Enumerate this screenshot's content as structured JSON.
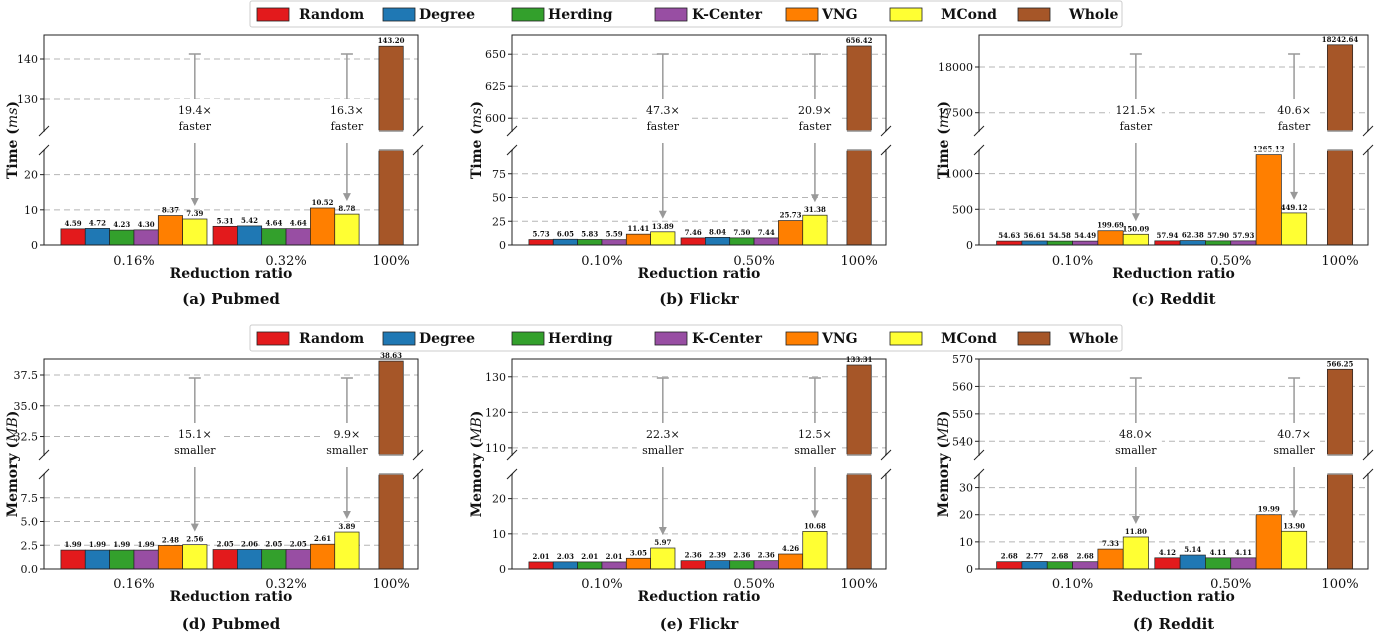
{
  "legend": [
    {
      "name": "Random",
      "color": "#e31a1c"
    },
    {
      "name": "Degree",
      "color": "#1f78b4"
    },
    {
      "name": "Herding",
      "color": "#33a02c"
    },
    {
      "name": "K-Center",
      "color": "#984ea3"
    },
    {
      "name": "VNG",
      "color": "#ff7f00"
    },
    {
      "name": "MCond",
      "color": "#ffff33"
    },
    {
      "name": "Whole",
      "color": "#a65628"
    }
  ],
  "chart_data": [
    {
      "type": "bar",
      "caption": "(a) Pubmed",
      "ylabel_main": "Time",
      "ylabel_unit": "ms",
      "xlabel": "Reduction ratio",
      "groups": [
        "0.16%",
        "0.32%"
      ],
      "whole_label": "100%",
      "series": [
        {
          "name": "Random",
          "values": [
            4.59,
            5.31
          ]
        },
        {
          "name": "Degree",
          "values": [
            4.72,
            5.42
          ]
        },
        {
          "name": "Herding",
          "values": [
            4.23,
            4.64
          ]
        },
        {
          "name": "K-Center",
          "values": [
            4.3,
            4.64
          ]
        },
        {
          "name": "VNG",
          "values": [
            8.37,
            10.52
          ]
        },
        {
          "name": "MCond",
          "values": [
            7.39,
            8.78
          ]
        }
      ],
      "whole": 143.2,
      "lower_ylim": [
        0,
        27
      ],
      "lower_ticks": [
        0,
        10,
        20
      ],
      "upper_ylim": [
        122,
        146
      ],
      "upper_ticks": [
        130,
        140
      ],
      "annotations": [
        {
          "group": 0,
          "text": [
            "19.4×",
            "faster"
          ]
        },
        {
          "group": 1,
          "text": [
            "16.3×",
            "faster"
          ]
        }
      ]
    },
    {
      "type": "bar",
      "caption": "(b) Flickr",
      "ylabel_main": "Time",
      "ylabel_unit": "ms",
      "xlabel": "Reduction ratio",
      "groups": [
        "0.10%",
        "0.50%"
      ],
      "whole_label": "100%",
      "series": [
        {
          "name": "Random",
          "values": [
            5.73,
            7.46
          ]
        },
        {
          "name": "Degree",
          "values": [
            6.05,
            8.04
          ]
        },
        {
          "name": "Herding",
          "values": [
            5.83,
            7.5
          ]
        },
        {
          "name": "K-Center",
          "values": [
            5.59,
            7.44
          ]
        },
        {
          "name": "VNG",
          "values": [
            11.41,
            25.73
          ]
        },
        {
          "name": "MCond",
          "values": [
            13.89,
            31.38
          ]
        }
      ],
      "whole": 656.42,
      "lower_ylim": [
        0,
        100
      ],
      "lower_ticks": [
        0,
        25,
        50,
        75
      ],
      "upper_ylim": [
        590,
        665
      ],
      "upper_ticks": [
        600,
        625,
        650
      ],
      "annotations": [
        {
          "group": 0,
          "text": [
            "47.3×",
            "faster"
          ]
        },
        {
          "group": 1,
          "text": [
            "20.9×",
            "faster"
          ]
        }
      ]
    },
    {
      "type": "bar",
      "caption": "(c) Reddit",
      "ylabel_main": "Time",
      "ylabel_unit": "ms",
      "xlabel": "Reduction ratio",
      "groups": [
        "0.10%",
        "0.50%"
      ],
      "whole_label": "100%",
      "series": [
        {
          "name": "Random",
          "values": [
            54.63,
            57.94
          ]
        },
        {
          "name": "Degree",
          "values": [
            56.61,
            62.38
          ]
        },
        {
          "name": "Herding",
          "values": [
            54.58,
            57.9
          ]
        },
        {
          "name": "K-Center",
          "values": [
            54.49,
            57.93
          ]
        },
        {
          "name": "VNG",
          "values": [
            199.69,
            1265.13
          ]
        },
        {
          "name": "MCond",
          "values": [
            150.09,
            449.12
          ]
        }
      ],
      "whole": 18242.64,
      "lower_ylim": [
        0,
        1330
      ],
      "lower_ticks": [
        0,
        500,
        1000
      ],
      "upper_ylim": [
        17300,
        18350
      ],
      "upper_ticks": [
        17500,
        18000
      ],
      "annotations": [
        {
          "group": 0,
          "text": [
            "121.5×",
            "faster"
          ]
        },
        {
          "group": 1,
          "text": [
            "40.6×",
            "faster"
          ]
        }
      ]
    },
    {
      "type": "bar",
      "caption": "(d) Pubmed",
      "ylabel_main": "Memory",
      "ylabel_unit": "MB",
      "xlabel": "Reduction ratio",
      "groups": [
        "0.16%",
        "0.32%"
      ],
      "whole_label": "100%",
      "series": [
        {
          "name": "Random",
          "values": [
            1.99,
            2.05
          ]
        },
        {
          "name": "Degree",
          "values": [
            1.99,
            2.06
          ]
        },
        {
          "name": "Herding",
          "values": [
            1.99,
            2.05
          ]
        },
        {
          "name": "K-Center",
          "values": [
            1.99,
            2.05
          ]
        },
        {
          "name": "VNG",
          "values": [
            2.48,
            2.61
          ]
        },
        {
          "name": "MCond",
          "values": [
            2.56,
            3.89
          ]
        }
      ],
      "whole": 38.63,
      "lower_ylim": [
        0,
        10
      ],
      "lower_ticks": [
        0.0,
        2.5,
        5.0,
        7.5
      ],
      "upper_ylim": [
        31,
        38.8
      ],
      "upper_ticks": [
        32.5,
        35.0,
        37.5
      ],
      "annotations": [
        {
          "group": 0,
          "text": [
            "15.1×",
            "smaller"
          ]
        },
        {
          "group": 1,
          "text": [
            "9.9×",
            "smaller"
          ]
        }
      ]
    },
    {
      "type": "bar",
      "caption": "(e) Flickr",
      "ylabel_main": "Memory",
      "ylabel_unit": "MB",
      "xlabel": "Reduction ratio",
      "groups": [
        "0.10%",
        "0.50%"
      ],
      "whole_label": "100%",
      "series": [
        {
          "name": "Random",
          "values": [
            2.01,
            2.36
          ]
        },
        {
          "name": "Degree",
          "values": [
            2.03,
            2.39
          ]
        },
        {
          "name": "Herding",
          "values": [
            2.01,
            2.36
          ]
        },
        {
          "name": "K-Center",
          "values": [
            2.01,
            2.36
          ]
        },
        {
          "name": "VNG",
          "values": [
            3.05,
            4.26
          ]
        },
        {
          "name": "MCond",
          "values": [
            5.97,
            10.68
          ]
        }
      ],
      "whole": 133.31,
      "lower_ylim": [
        0,
        27
      ],
      "lower_ticks": [
        0,
        10,
        20
      ],
      "upper_ylim": [
        108,
        135
      ],
      "upper_ticks": [
        110,
        120,
        130
      ],
      "annotations": [
        {
          "group": 0,
          "text": [
            "22.3×",
            "smaller"
          ]
        },
        {
          "group": 1,
          "text": [
            "12.5×",
            "smaller"
          ]
        }
      ]
    },
    {
      "type": "bar",
      "caption": "(f) Reddit",
      "ylabel_main": "Memory",
      "ylabel_unit": "MB",
      "xlabel": "Reduction ratio",
      "groups": [
        "0.10%",
        "0.50%"
      ],
      "whole_label": "100%",
      "series": [
        {
          "name": "Random",
          "values": [
            2.68,
            4.12
          ]
        },
        {
          "name": "Degree",
          "values": [
            2.77,
            5.14
          ]
        },
        {
          "name": "Herding",
          "values": [
            2.68,
            4.11
          ]
        },
        {
          "name": "K-Center",
          "values": [
            2.68,
            4.11
          ]
        },
        {
          "name": "VNG",
          "values": [
            7.33,
            19.99
          ]
        },
        {
          "name": "MCond",
          "values": [
            11.8,
            13.9
          ]
        }
      ],
      "whole": 566.25,
      "lower_ylim": [
        0,
        35
      ],
      "lower_ticks": [
        0,
        10,
        20,
        30
      ],
      "upper_ylim": [
        535,
        570
      ],
      "upper_ticks": [
        540,
        550,
        560,
        570
      ],
      "annotations": [
        {
          "group": 0,
          "text": [
            "48.0×",
            "smaller"
          ]
        },
        {
          "group": 1,
          "text": [
            "40.7×",
            "smaller"
          ]
        }
      ]
    }
  ]
}
